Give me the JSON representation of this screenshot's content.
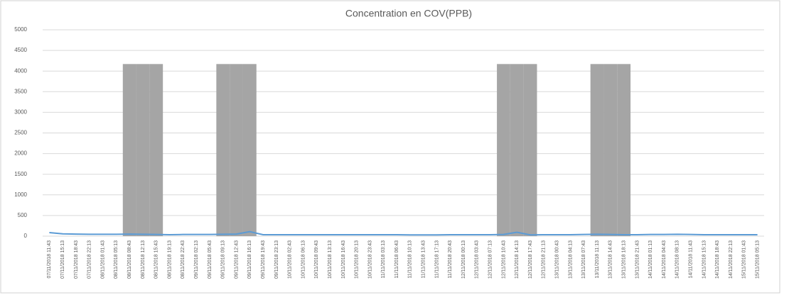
{
  "chart_data": {
    "type": "combo",
    "title": "Concentration en COV(PPB)",
    "categories": [
      "07/11/2018 11:43",
      "07/11/2018 15:13",
      "07/11/2018 18:43",
      "07/11/2018 22:13",
      "08/11/2018 01:43",
      "08/11/2018 05:13",
      "08/11/2018 08:43",
      "08/11/2018 12:13",
      "08/11/2018 15:43",
      "08/11/2018 19:13",
      "08/11/2018 22:43",
      "09/11/2018 02:13",
      "09/11/2018 05:43",
      "09/11/2018 09:13",
      "09/11/2018 12:43",
      "09/11/2018 16:13",
      "09/11/2018 19:43",
      "09/11/2018 23:13",
      "10/11/2018 02:43",
      "10/11/2018 06:13",
      "10/11/2018 09:43",
      "10/11/2018 13:13",
      "10/11/2018 16:43",
      "10/11/2018 20:13",
      "10/11/2018 23:43",
      "11/11/2018 03:13",
      "11/11/2018 06:43",
      "11/11/2018 10:13",
      "11/11/2018 13:43",
      "11/11/2018 17:13",
      "11/11/2018 20:43",
      "12/11/2018 00:13",
      "12/11/2018 03:43",
      "12/11/2018 07:13",
      "12/11/2018 10:43",
      "12/11/2018 14:13",
      "12/11/2018 17:43",
      "12/11/2018 21:13",
      "13/11/2018 00:43",
      "13/11/2018 04:13",
      "13/11/2018 07:43",
      "13/11/2018 11:13",
      "13/11/2018 14:43",
      "13/11/2018 18:13",
      "13/11/2018 21:43",
      "14/11/2018 01:13",
      "14/11/2018 04:43",
      "14/11/2018 08:13",
      "14/11/2018 11:43",
      "14/11/2018 15:13",
      "14/11/2018 18:43",
      "14/11/2018 22:13",
      "15/11/2018 01:43",
      "15/11/2018 05:13"
    ],
    "series": [
      {
        "type": "bar",
        "color": "#a5a5a5",
        "values": [
          null,
          null,
          null,
          null,
          null,
          null,
          4170,
          4170,
          4170,
          null,
          null,
          null,
          null,
          4170,
          4170,
          4170,
          null,
          null,
          null,
          null,
          null,
          null,
          null,
          null,
          null,
          null,
          null,
          null,
          null,
          null,
          null,
          null,
          null,
          null,
          4170,
          4170,
          4170,
          null,
          null,
          null,
          null,
          4170,
          4170,
          4170,
          null,
          null,
          null,
          null,
          null,
          null,
          null,
          null,
          null,
          null
        ]
      },
      {
        "type": "line",
        "color": "#5b9bd5",
        "values": [
          85,
          55,
          50,
          45,
          45,
          45,
          50,
          45,
          40,
          35,
          40,
          40,
          40,
          45,
          50,
          110,
          35,
          35,
          35,
          35,
          35,
          35,
          35,
          35,
          35,
          35,
          35,
          30,
          30,
          30,
          35,
          35,
          35,
          35,
          40,
          95,
          30,
          35,
          35,
          35,
          40,
          45,
          40,
          35,
          35,
          40,
          40,
          45,
          40,
          35,
          35,
          35,
          35,
          35
        ]
      }
    ],
    "ylim": [
      0,
      5000
    ],
    "yticks": [
      0,
      500,
      1000,
      1500,
      2000,
      2500,
      3000,
      3500,
      4000,
      4500,
      5000
    ],
    "grid": true
  }
}
